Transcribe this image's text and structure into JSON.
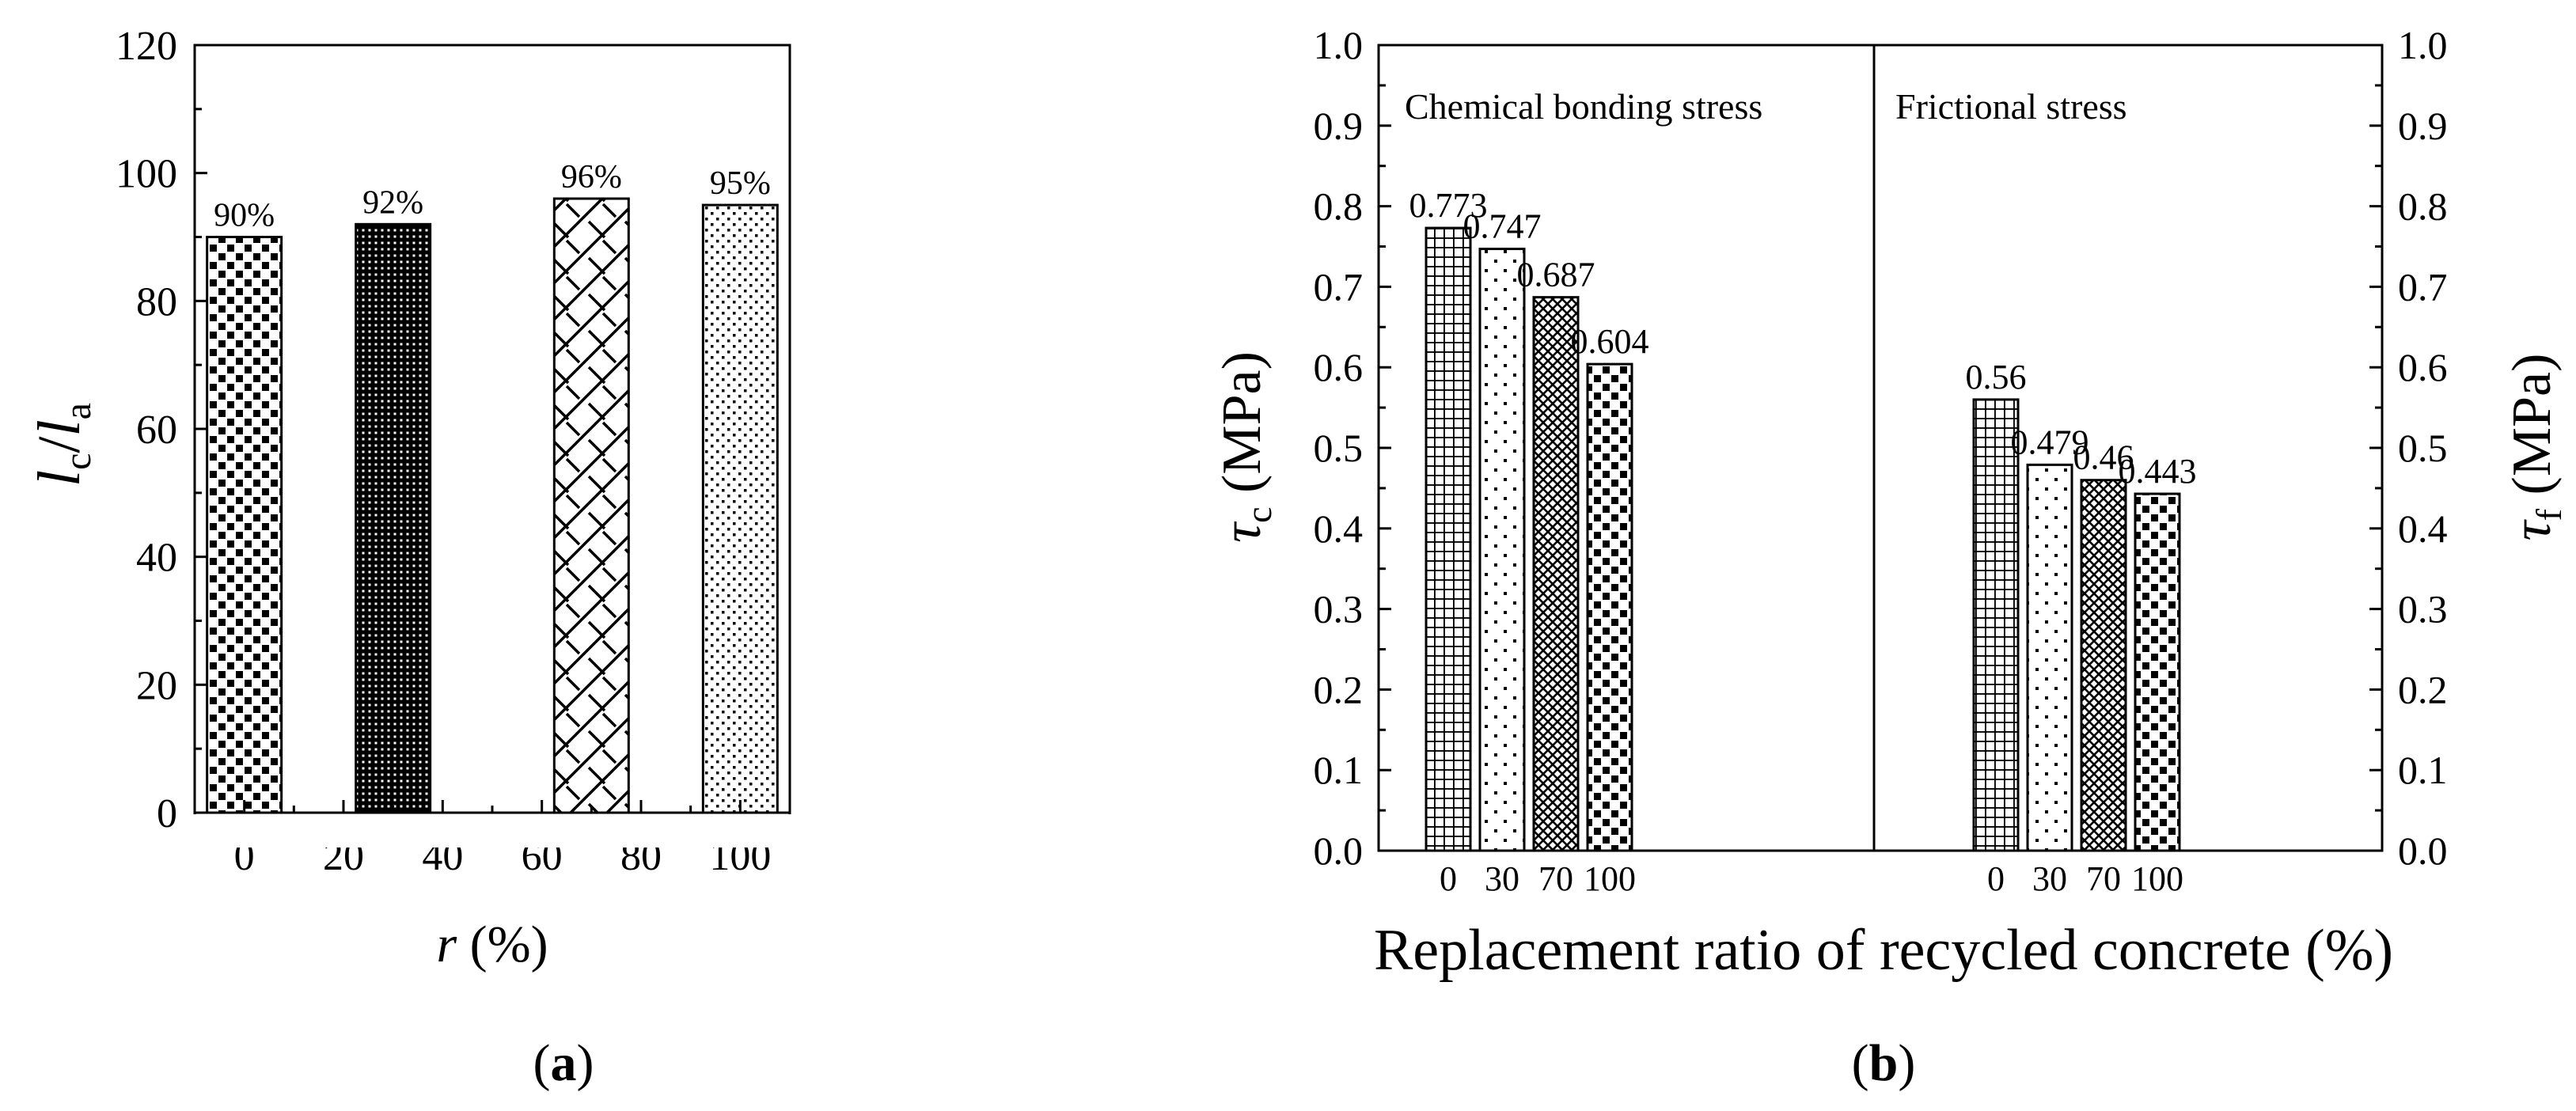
{
  "chart_data": [
    {
      "type": "bar",
      "panel_label": "(a)",
      "panel_letter": "a",
      "x": [
        0,
        30,
        70,
        100
      ],
      "values": [
        90,
        92,
        96,
        95
      ],
      "bar_labels": [
        "90%",
        "92%",
        "96%",
        "95%"
      ],
      "xticks": [
        "0",
        "20",
        "40",
        "60",
        "80",
        "100"
      ],
      "xlim": [
        -10,
        110
      ],
      "ylim": [
        0,
        120
      ],
      "yticks": [
        "0",
        "20",
        "40",
        "60",
        "80",
        "100",
        "120"
      ],
      "xlabel": {
        "var": "r",
        "unit": " (%)"
      },
      "ylabel": {
        "v1": "l",
        "s1": "c",
        "sep": "/",
        "v2": "l",
        "s2": "a"
      },
      "patterns": [
        "squares-large",
        "dense-grid",
        "diagonal-lattice",
        "dots"
      ]
    },
    {
      "type": "bar",
      "panel_label": "(b)",
      "panel_letter": "b",
      "xlabel": "Replacement ratio of recycled concrete (%)",
      "ylim": [
        0,
        1.0
      ],
      "yticks": [
        "0.0",
        "0.1",
        "0.2",
        "0.3",
        "0.4",
        "0.5",
        "0.6",
        "0.7",
        "0.8",
        "0.9",
        "1.0"
      ],
      "ylabel_left": {
        "sym": "τ",
        "sub": "c",
        "unit": " (MPa)"
      },
      "ylabel_right": {
        "sym": "τ",
        "sub": "f",
        "unit": " (MPa)"
      },
      "groups": [
        {
          "title": "Chemical bonding stress",
          "categories": [
            "0",
            "30",
            "70",
            "100"
          ],
          "values": [
            0.773,
            0.747,
            0.687,
            0.604
          ],
          "labels": [
            "0.773",
            "0.747",
            "0.687",
            "0.604"
          ]
        },
        {
          "title": "Frictional stress",
          "categories": [
            "0",
            "30",
            "70",
            "100"
          ],
          "values": [
            0.56,
            0.479,
            0.46,
            0.443
          ],
          "labels": [
            "0.56",
            "0.479",
            "0.46",
            "0.443"
          ]
        }
      ],
      "patterns": [
        "grid",
        "sparse-dots",
        "crosshatch",
        "squares-large"
      ]
    }
  ]
}
